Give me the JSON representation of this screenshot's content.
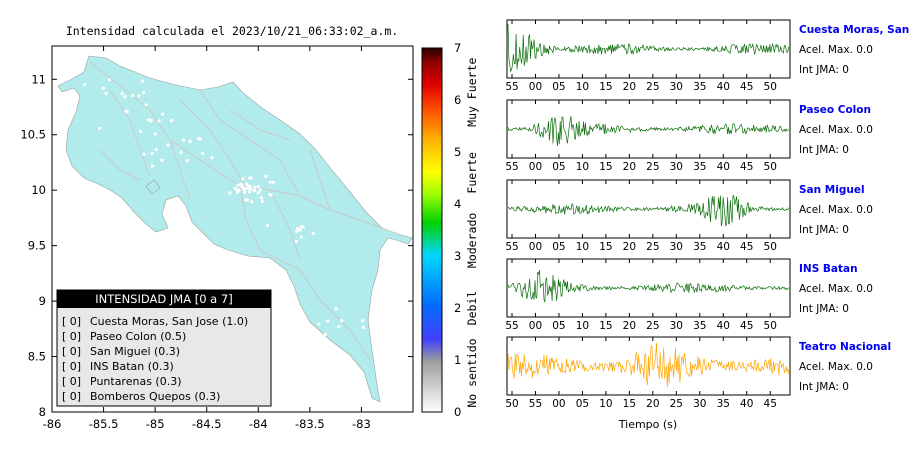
{
  "map": {
    "title": "Intensidad calculada el 2023/10/21_06:33:02_a.m.",
    "x_ticks": [
      "-86",
      "-85.5",
      "-85",
      "-84.5",
      "-84",
      "-83.5",
      "-83"
    ],
    "y_ticks": [
      "11",
      "10.5",
      "10",
      "9.5",
      "9",
      "8.5",
      "8"
    ],
    "xlim": [
      -86,
      -82.5
    ],
    "ylim": [
      8,
      11.3
    ],
    "land_color": "#b2ebeb",
    "road_color": "#c9c9c9",
    "city_color": "#ffffff"
  },
  "colorbar": {
    "ticks": [
      "0",
      "1",
      "2",
      "3",
      "4",
      "5",
      "6",
      "7"
    ],
    "range": [
      0,
      7
    ],
    "labels": [
      "No sentido",
      "Debil",
      "Moderado",
      "Fuerte",
      "Muy Fuerte"
    ]
  },
  "legend": {
    "title": "INTENSIDAD JMA [0 a 7]",
    "entries": [
      {
        "bracket": "[ 0]",
        "name": "Cuesta Moras, San Jose (1.0)"
      },
      {
        "bracket": "[ 0]",
        "name": "Paseo Colon (0.5)"
      },
      {
        "bracket": "[ 0]",
        "name": "San Miguel (0.3)"
      },
      {
        "bracket": "[ 0]",
        "name": "INS Batan (0.3)"
      },
      {
        "bracket": "[ 0]",
        "name": "Puntarenas (0.3)"
      },
      {
        "bracket": "[ 0]",
        "name": "Bomberos Quepos (0.3)"
      }
    ]
  },
  "traces": {
    "xlabel": "Tiempo (s)",
    "panels": [
      {
        "station": "Cuesta Moras, San Jose",
        "acel": "Acel. Max. 0.0",
        "int": "Int JMA: 0",
        "color": "#0a6e0a",
        "ticks": [
          "55",
          "00",
          "05",
          "10",
          "15",
          "20",
          "25",
          "30",
          "35",
          "40",
          "45",
          "50"
        ],
        "tick_start": 55,
        "burst_at": 54.5
      },
      {
        "station": "Paseo Colon",
        "acel": "Acel. Max. 0.0",
        "int": "Int JMA: 0",
        "color": "#0a6e0a",
        "ticks": [
          "55",
          "00",
          "05",
          "10",
          "15",
          "20",
          "25",
          "30",
          "35",
          "40",
          "45",
          "50"
        ],
        "tick_start": 55,
        "burst_at": 15
      },
      {
        "station": "San Miguel",
        "acel": "Acel. Max. 0.0",
        "int": "Int JMA: 0",
        "color": "#0a6e0a",
        "ticks": [
          "55",
          "00",
          "05",
          "10",
          "15",
          "20",
          "25",
          "30",
          "35",
          "40",
          "45",
          "50"
        ],
        "tick_start": 55,
        "burst_at": 40
      },
      {
        "station": "INS Batan",
        "acel": "Acel. Max. 0.0",
        "int": "Int JMA: 0",
        "color": "#0a6e0a",
        "ticks": [
          "55",
          "00",
          "05",
          "10",
          "15",
          "20",
          "25",
          "30",
          "35",
          "40",
          "45",
          "50"
        ],
        "tick_start": 55,
        "burst_at": 1
      },
      {
        "station": "Teatro Nacional",
        "acel": "Acel. Max. 0.0",
        "int": "Int JMA: 0",
        "color": "#ffa500",
        "ticks": [
          "50",
          "55",
          "00",
          "05",
          "10",
          "15",
          "20",
          "25",
          "30",
          "35",
          "40",
          "45"
        ],
        "tick_start": 50,
        "burst_at": 22
      }
    ]
  },
  "chart_data": [
    {
      "type": "scatter",
      "title": "Intensidad calculada el 2023/10/21_06:33:02_a.m.",
      "xlabel": "",
      "ylabel": "",
      "xlim": [
        -86,
        -82.5
      ],
      "ylim": [
        8,
        11.3
      ],
      "legend_title": "INTENSIDAD JMA [0 a 7]",
      "stations": [
        {
          "name": "Cuesta Moras, San Jose",
          "value": 1.0,
          "class": 0
        },
        {
          "name": "Paseo Colon",
          "value": 0.5,
          "class": 0
        },
        {
          "name": "San Miguel",
          "value": 0.3,
          "class": 0
        },
        {
          "name": "INS Batan",
          "value": 0.3,
          "class": 0
        },
        {
          "name": "Puntarenas",
          "value": 0.3,
          "class": 0
        },
        {
          "name": "Bomberos Quepos",
          "value": 0.3,
          "class": 0
        }
      ],
      "legend_placement": "bottom-left",
      "colorbar": {
        "range": [
          0,
          7
        ],
        "labels": [
          "No sentido",
          "Debil",
          "Moderado",
          "Fuerte",
          "Muy Fuerte"
        ]
      }
    },
    {
      "type": "line",
      "xlabel": "Tiempo (s)",
      "series": [
        {
          "name": "Cuesta Moras, San Jose",
          "acel_max": 0.0,
          "int_jma": 0
        },
        {
          "name": "Paseo Colon",
          "acel_max": 0.0,
          "int_jma": 0
        },
        {
          "name": "San Miguel",
          "acel_max": 0.0,
          "int_jma": 0
        },
        {
          "name": "INS Batan",
          "acel_max": 0.0,
          "int_jma": 0
        },
        {
          "name": "Teatro Nacional",
          "acel_max": 0.0,
          "int_jma": 0
        }
      ]
    }
  ]
}
